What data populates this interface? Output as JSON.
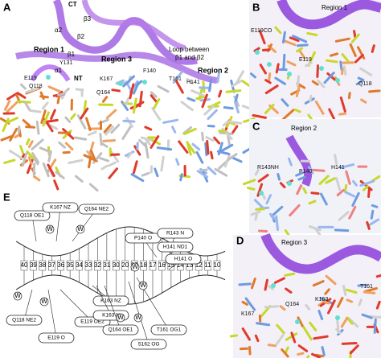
{
  "panels": {
    "a": {
      "label": "A",
      "texts": [
        "CT",
        "α2",
        "β3",
        "β2",
        "β1",
        "α1",
        "Region 1",
        "NT",
        "Region 3",
        "Loop between",
        "β1 and β2",
        "Region 2",
        "Y131",
        "E119",
        "Q118",
        "K167",
        "Q164",
        "F140",
        "T161",
        "H141"
      ]
    },
    "b": {
      "label": "B",
      "texts": [
        "Region 1",
        "E119CO",
        "E119",
        "Q118"
      ]
    },
    "c": {
      "label": "C",
      "texts": [
        "Region 2",
        "R143NH",
        "P140",
        "H141"
      ]
    },
    "d": {
      "label": "D",
      "texts": [
        "Region 3",
        "K167",
        "Q164",
        "K163",
        "T161"
      ]
    },
    "e": {
      "label": "E",
      "contacts": [
        "Q118 OE1",
        "K167 NZ",
        "Q164 NE2",
        "P140 O",
        "R143 N",
        "H141 ND1",
        "H141 O",
        "Q118 NE2",
        "E119 OE2",
        "E119 O",
        "K163 NZ",
        "K163 N",
        "Q164 OE1",
        "T161 OG1",
        "S162 OG"
      ],
      "water": "W",
      "ladder_numbers": [
        "40",
        "39",
        "38",
        "37",
        "36",
        "35",
        "34",
        "33",
        "32",
        "31",
        "30",
        "20",
        "19",
        "18",
        "17",
        "16",
        "15",
        "14",
        "13",
        "12",
        "11",
        "10"
      ]
    }
  }
}
